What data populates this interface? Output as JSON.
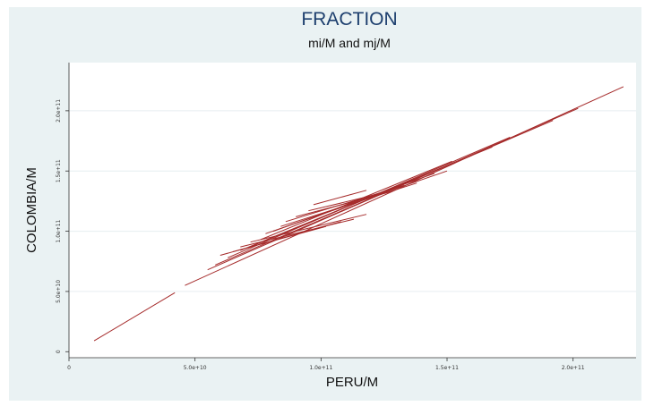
{
  "chart_data": {
    "type": "line",
    "title": "FRACTION",
    "subtitle": "mi/M and mj/M",
    "xlabel": "PERU/M",
    "ylabel": "COLOMBIA/M",
    "xlim": [
      0,
      225000000000
    ],
    "ylim": [
      -5000000000,
      240000000000
    ],
    "x_ticks": [
      {
        "value": 0,
        "label": "0"
      },
      {
        "value": 50000000000,
        "label": "5.0e+10"
      },
      {
        "value": 100000000000,
        "label": "1.0e+11"
      },
      {
        "value": 150000000000,
        "label": "1.5e+11"
      },
      {
        "value": 200000000000,
        "label": "2.0e+11"
      }
    ],
    "y_ticks": [
      {
        "value": 0,
        "label": "0"
      },
      {
        "value": 50000000000,
        "label": "5.0e+10"
      },
      {
        "value": 100000000000,
        "label": "1.0e+11"
      },
      {
        "value": 150000000000,
        "label": "1.5e+11"
      },
      {
        "value": 200000000000,
        "label": "2.0e+11"
      }
    ],
    "grid": true,
    "line_color": "#a52a2a",
    "series": [
      {
        "x": [
          10000000000,
          42000000000
        ],
        "y": [
          9000000000,
          49000000000
        ]
      },
      {
        "x": [
          46000000000,
          220000000000
        ],
        "y": [
          55000000000,
          220000000000
        ]
      },
      {
        "x": [
          55000000000,
          202000000000
        ],
        "y": [
          68000000000,
          202000000000
        ]
      },
      {
        "x": [
          58000000000,
          192000000000
        ],
        "y": [
          72000000000,
          192000000000
        ]
      },
      {
        "x": [
          63000000000,
          175000000000
        ],
        "y": [
          78000000000,
          178000000000
        ]
      },
      {
        "x": [
          68000000000,
          168000000000
        ],
        "y": [
          84000000000,
          170000000000
        ]
      },
      {
        "x": [
          73000000000,
          160000000000
        ],
        "y": [
          88000000000,
          163000000000
        ]
      },
      {
        "x": [
          76000000000,
          152000000000
        ],
        "y": [
          93000000000,
          158000000000
        ]
      },
      {
        "x": [
          78000000000,
          150000000000
        ],
        "y": [
          98000000000,
          150000000000
        ]
      },
      {
        "x": [
          81000000000,
          145000000000
        ],
        "y": [
          100000000000,
          148000000000
        ]
      },
      {
        "x": [
          84000000000,
          138000000000
        ],
        "y": [
          104000000000,
          140000000000
        ]
      },
      {
        "x": [
          86000000000,
          133000000000
        ],
        "y": [
          108000000000,
          138000000000
        ]
      },
      {
        "x": [
          90000000000,
          128000000000
        ],
        "y": [
          112000000000,
          133000000000
        ]
      },
      {
        "x": [
          95000000000,
          125000000000
        ],
        "y": [
          117000000000,
          132000000000
        ]
      },
      {
        "x": [
          97000000000,
          118000000000
        ],
        "y": [
          122000000000,
          134000000000
        ]
      },
      {
        "x": [
          60000000000,
          108000000000
        ],
        "y": [
          80000000000,
          108000000000
        ]
      },
      {
        "x": [
          65000000000,
          102000000000
        ],
        "y": [
          83000000000,
          104000000000
        ]
      },
      {
        "x": [
          68000000000,
          113000000000
        ],
        "y": [
          87000000000,
          110000000000
        ]
      },
      {
        "x": [
          72000000000,
          118000000000
        ],
        "y": [
          91000000000,
          114000000000
        ]
      }
    ]
  }
}
